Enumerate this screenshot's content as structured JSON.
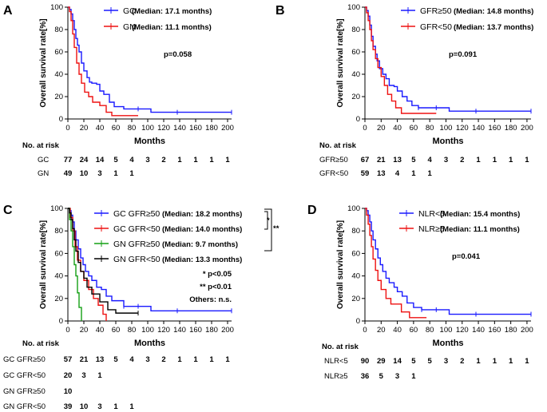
{
  "colors": {
    "blue": "#1a1aff",
    "red": "#ee1111",
    "green": "#15a015",
    "black": "#000000"
  },
  "chart_data": [
    {
      "type": "line",
      "panel_label": "A",
      "xlabel": "Months",
      "ylabel": "Overall survival rate[%]",
      "xlim": [
        0,
        205
      ],
      "ylim": [
        0,
        100
      ],
      "xticks": [
        0,
        20,
        40,
        60,
        80,
        100,
        120,
        140,
        160,
        180,
        200
      ],
      "yticks": [
        0,
        20,
        40,
        60,
        80,
        100
      ],
      "series": [
        {
          "name": "GC",
          "median_label": "(Median: 17.1 months)",
          "color": "#1a1aff",
          "x": [
            0,
            2,
            4,
            6,
            8,
            10,
            12,
            14,
            17,
            20,
            24,
            27,
            30,
            36,
            40,
            45,
            52,
            58,
            70,
            88,
            104,
            120,
            160,
            205
          ],
          "y": [
            100,
            98,
            94,
            88,
            80,
            72,
            66,
            60,
            50,
            43,
            37,
            33,
            32,
            31,
            25,
            22,
            15,
            11,
            9,
            9,
            6,
            6,
            6,
            6
          ],
          "censor_x": [
            88,
            137,
            205
          ],
          "censor_y": [
            9,
            6,
            6
          ]
        },
        {
          "name": "GN",
          "median_label": "(Median: 11.1 months)",
          "color": "#ee1111",
          "x": [
            0,
            2,
            4,
            6,
            8,
            11,
            14,
            17,
            21,
            26,
            31,
            40,
            48,
            55,
            88
          ],
          "y": [
            100,
            96,
            88,
            76,
            64,
            50,
            40,
            32,
            24,
            20,
            15,
            12,
            6,
            3,
            3
          ],
          "censor_x": [],
          "censor_y": []
        }
      ],
      "annotations": [
        "p=0.058"
      ],
      "risk_table": {
        "title": "No. at risk",
        "rows": [
          {
            "label": "GC",
            "values": [
              "77",
              "24",
              "14",
              "5",
              "4",
              "3",
              "2",
              "1",
              "1",
              "1",
              "1"
            ]
          },
          {
            "label": "GN",
            "values": [
              "49",
              "10",
              "3",
              "1",
              "1"
            ]
          }
        ]
      }
    },
    {
      "type": "line",
      "panel_label": "B",
      "xlabel": "Months",
      "ylabel": "Overall survival rate[%]",
      "xlim": [
        0,
        205
      ],
      "ylim": [
        0,
        100
      ],
      "xticks": [
        0,
        20,
        40,
        60,
        80,
        100,
        120,
        140,
        160,
        180,
        200
      ],
      "yticks": [
        0,
        20,
        40,
        60,
        80,
        100
      ],
      "series": [
        {
          "name": "GFR≥50",
          "median_label": "(Median: 14.8 months)",
          "color": "#1a1aff",
          "x": [
            0,
            2,
            4,
            6,
            8,
            10,
            13,
            15,
            18,
            22,
            26,
            30,
            36,
            40,
            46,
            52,
            58,
            66,
            88,
            104,
            140,
            205
          ],
          "y": [
            100,
            97,
            92,
            84,
            74,
            65,
            58,
            52,
            45,
            40,
            36,
            30,
            29,
            25,
            20,
            16,
            12,
            10,
            10,
            7,
            7,
            7
          ],
          "censor_x": [
            66,
            88,
            137,
            205
          ],
          "censor_y": [
            10,
            10,
            7,
            7
          ]
        },
        {
          "name": "GFR<50",
          "median_label": "(Median: 13.7 months)",
          "color": "#ee1111",
          "x": [
            0,
            2,
            4,
            6,
            8,
            10,
            13,
            16,
            20,
            24,
            28,
            33,
            38,
            45,
            88
          ],
          "y": [
            100,
            95,
            88,
            80,
            70,
            62,
            54,
            46,
            38,
            30,
            22,
            16,
            10,
            5,
            5
          ],
          "censor_x": [],
          "censor_y": []
        }
      ],
      "annotations": [
        "p=0.091"
      ],
      "risk_table": {
        "title": "No. at risk",
        "rows": [
          {
            "label": "GFR≥50",
            "values": [
              "67",
              "21",
              "13",
              "5",
              "4",
              "3",
              "2",
              "1",
              "1",
              "1",
              "1"
            ]
          },
          {
            "label": "GFR<50",
            "values": [
              "59",
              "13",
              "4",
              "1",
              "1"
            ]
          }
        ]
      }
    },
    {
      "type": "line",
      "panel_label": "C",
      "xlabel": "Months",
      "ylabel": "Overall survival rate[%]",
      "xlim": [
        0,
        205
      ],
      "ylim": [
        0,
        100
      ],
      "xticks": [
        0,
        20,
        40,
        60,
        80,
        100,
        120,
        140,
        160,
        180,
        200
      ],
      "yticks": [
        0,
        20,
        40,
        60,
        80,
        100
      ],
      "series": [
        {
          "name": "GC  GFR≥50",
          "median_label": "(Median: 18.2 months)",
          "color": "#1a1aff",
          "x": [
            0,
            2,
            4,
            6,
            8,
            10,
            13,
            16,
            19,
            22,
            26,
            30,
            36,
            42,
            48,
            55,
            70,
            88,
            104,
            140,
            205
          ],
          "y": [
            100,
            98,
            94,
            88,
            80,
            72,
            64,
            56,
            50,
            44,
            40,
            36,
            30,
            28,
            22,
            18,
            13,
            13,
            9,
            9,
            9
          ],
          "censor_x": [
            70,
            88,
            137,
            205
          ],
          "censor_y": [
            13,
            13,
            9,
            9
          ]
        },
        {
          "name": "GC  GFR<50",
          "median_label": "(Median: 14.0 months)",
          "color": "#ee1111",
          "x": [
            0,
            3,
            6,
            9,
            12,
            16,
            20,
            26,
            32,
            38,
            44,
            48
          ],
          "y": [
            100,
            92,
            80,
            66,
            54,
            44,
            36,
            28,
            20,
            14,
            6,
            0
          ],
          "censor_x": [],
          "censor_y": []
        },
        {
          "name": "GN  GFR≥50",
          "median_label": "(Median: 9.7 months)",
          "color": "#15a015",
          "x": [
            0,
            2,
            4,
            6,
            8,
            10,
            12,
            14,
            17
          ],
          "y": [
            100,
            90,
            80,
            66,
            50,
            40,
            25,
            12,
            0
          ],
          "censor_x": [],
          "censor_y": []
        },
        {
          "name": "GN  GFR<50",
          "median_label": "(Median: 13.3 months)",
          "color": "#000000",
          "x": [
            0,
            2,
            4,
            6,
            8,
            10,
            13,
            16,
            20,
            24,
            30,
            40,
            50,
            60,
            88
          ],
          "y": [
            100,
            96,
            90,
            82,
            72,
            62,
            52,
            44,
            38,
            30,
            24,
            17,
            10,
            7,
            7
          ],
          "censor_x": [
            88
          ],
          "censor_y": [
            7
          ]
        }
      ],
      "annotations": [
        "* p<0.05",
        "** p<0.01",
        "Others: n.s."
      ],
      "bracket_marks": [
        "*",
        "**"
      ],
      "risk_table": {
        "title": "No. at risk",
        "rows": [
          {
            "label": "GC  GFR≥50",
            "values": [
              "57",
              "21",
              "13",
              "5",
              "4",
              "3",
              "2",
              "1",
              "1",
              "1",
              "1"
            ]
          },
          {
            "label": "GC  GFR<50",
            "values": [
              "20",
              "3",
              "1"
            ]
          },
          {
            "label": "GN  GFR≥50",
            "values": [
              "10"
            ]
          },
          {
            "label": "GN  GFR<50",
            "values": [
              "39",
              "10",
              "3",
              "1",
              "1"
            ]
          }
        ]
      }
    },
    {
      "type": "line",
      "panel_label": "D",
      "xlabel": "Months",
      "ylabel": "Overall survival rate[%]",
      "xlim": [
        0,
        205
      ],
      "ylim": [
        0,
        100
      ],
      "xticks": [
        0,
        20,
        40,
        60,
        80,
        100,
        120,
        140,
        160,
        180,
        200
      ],
      "yticks": [
        0,
        20,
        40,
        60,
        80,
        100
      ],
      "series": [
        {
          "name": "NLR<5",
          "median_label": "(Median: 15.4 months)",
          "color": "#1a1aff",
          "x": [
            0,
            2,
            4,
            6,
            8,
            10,
            13,
            16,
            19,
            22,
            26,
            30,
            36,
            40,
            46,
            52,
            60,
            70,
            88,
            104,
            140,
            205
          ],
          "y": [
            100,
            98,
            94,
            88,
            80,
            72,
            64,
            56,
            50,
            44,
            38,
            34,
            30,
            26,
            22,
            16,
            12,
            10,
            10,
            6,
            6,
            6
          ],
          "censor_x": [
            70,
            88,
            137,
            205
          ],
          "censor_y": [
            10,
            10,
            6,
            6
          ]
        },
        {
          "name": "NLR≥5",
          "median_label": "(Median: 11.1 months)",
          "color": "#ee1111",
          "x": [
            0,
            2,
            4,
            6,
            8,
            10,
            13,
            16,
            20,
            26,
            32,
            40,
            45,
            55,
            76
          ],
          "y": [
            100,
            94,
            86,
            76,
            66,
            55,
            45,
            36,
            28,
            20,
            15,
            15,
            8,
            3,
            3
          ],
          "censor_x": [],
          "censor_y": []
        }
      ],
      "annotations": [
        "p=0.041"
      ],
      "risk_table": {
        "title": "No. at risk",
        "rows": [
          {
            "label": "NLR<5",
            "values": [
              "90",
              "29",
              "14",
              "5",
              "5",
              "3",
              "2",
              "1",
              "1",
              "1",
              "1"
            ]
          },
          {
            "label": "NLR≥5",
            "values": [
              "36",
              "5",
              "3",
              "1"
            ]
          }
        ]
      }
    }
  ]
}
